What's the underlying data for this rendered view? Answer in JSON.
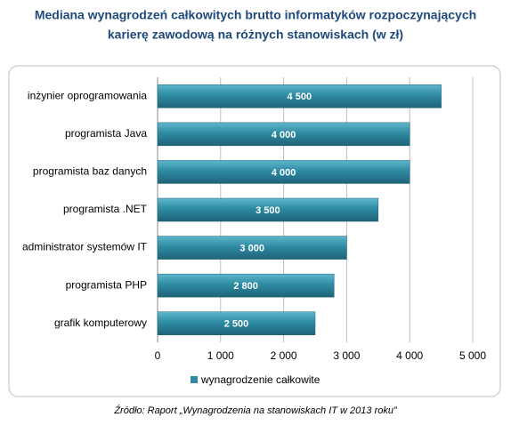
{
  "chart_data": {
    "type": "bar",
    "orientation": "horizontal",
    "title": [
      "Mediana wynagrodzeń całkowitych brutto informatyków rozpoczynających",
      "karierę zawodową na różnych stanowiskach (w zł)"
    ],
    "categories": [
      "inżynier oprogramowania",
      "programista Java",
      "programista baz danych",
      "programista .NET",
      "administrator systemów IT",
      "programista PHP",
      "grafik komputerowy"
    ],
    "series": [
      {
        "name": "wynagrodzenie całkowite",
        "color": "#2e8ba3",
        "values": [
          4500,
          4000,
          4000,
          3500,
          3000,
          2800,
          2500
        ],
        "value_labels": [
          "4 500",
          "4 000",
          "4 000",
          "3 500",
          "3 000",
          "2 800",
          "2 500"
        ]
      }
    ],
    "xlim": [
      0,
      5000
    ],
    "xticks": [
      0,
      {
        "value": 1000,
        "label": "1 000"
      },
      {
        "value": 2000,
        "label": "2 000"
      },
      {
        "value": 3000,
        "label": "3 000"
      },
      {
        "value": 4000,
        "label": "4 000"
      },
      {
        "value": 5000,
        "label": "5 000"
      }
    ],
    "grid": true,
    "legend": "bottom",
    "source": "Źródło: Raport „Wynagrodzenia na stanowiskach IT w 2013 roku”"
  }
}
